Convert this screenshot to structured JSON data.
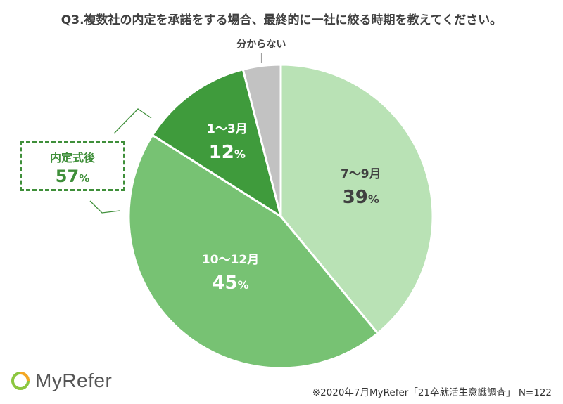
{
  "title": "Q3.複数社の内定を承諾をする場合、最終的に一社に絞る時期を教えてください。",
  "chart_data": {
    "type": "pie",
    "slices": [
      {
        "label": "7〜9月",
        "value": 39,
        "value_text": "39",
        "color": "#b9e2b5",
        "text_color": "#404040"
      },
      {
        "label": "10〜12月",
        "value": 45,
        "value_text": "45",
        "color": "#77c273",
        "text_color": "#ffffff"
      },
      {
        "label": "1〜3月",
        "value": 12,
        "value_text": "12",
        "color": "#3f9b3c",
        "text_color": "#ffffff"
      },
      {
        "label": "分からない",
        "value": 4,
        "value_text": "",
        "color": "#c2c2c2",
        "text_color": "#404040"
      }
    ],
    "unit": "%",
    "callout": {
      "label": "内定式後",
      "value": "57",
      "unit": "%",
      "color": "#3f8f3a"
    }
  },
  "logo": {
    "text": "MyRefer",
    "icon": "ring-logo-icon",
    "colors": [
      "#8cc63f",
      "#f5a623"
    ]
  },
  "footnote": "※2020年7月MyRefer「21卒就活生意識調査」 N=122"
}
